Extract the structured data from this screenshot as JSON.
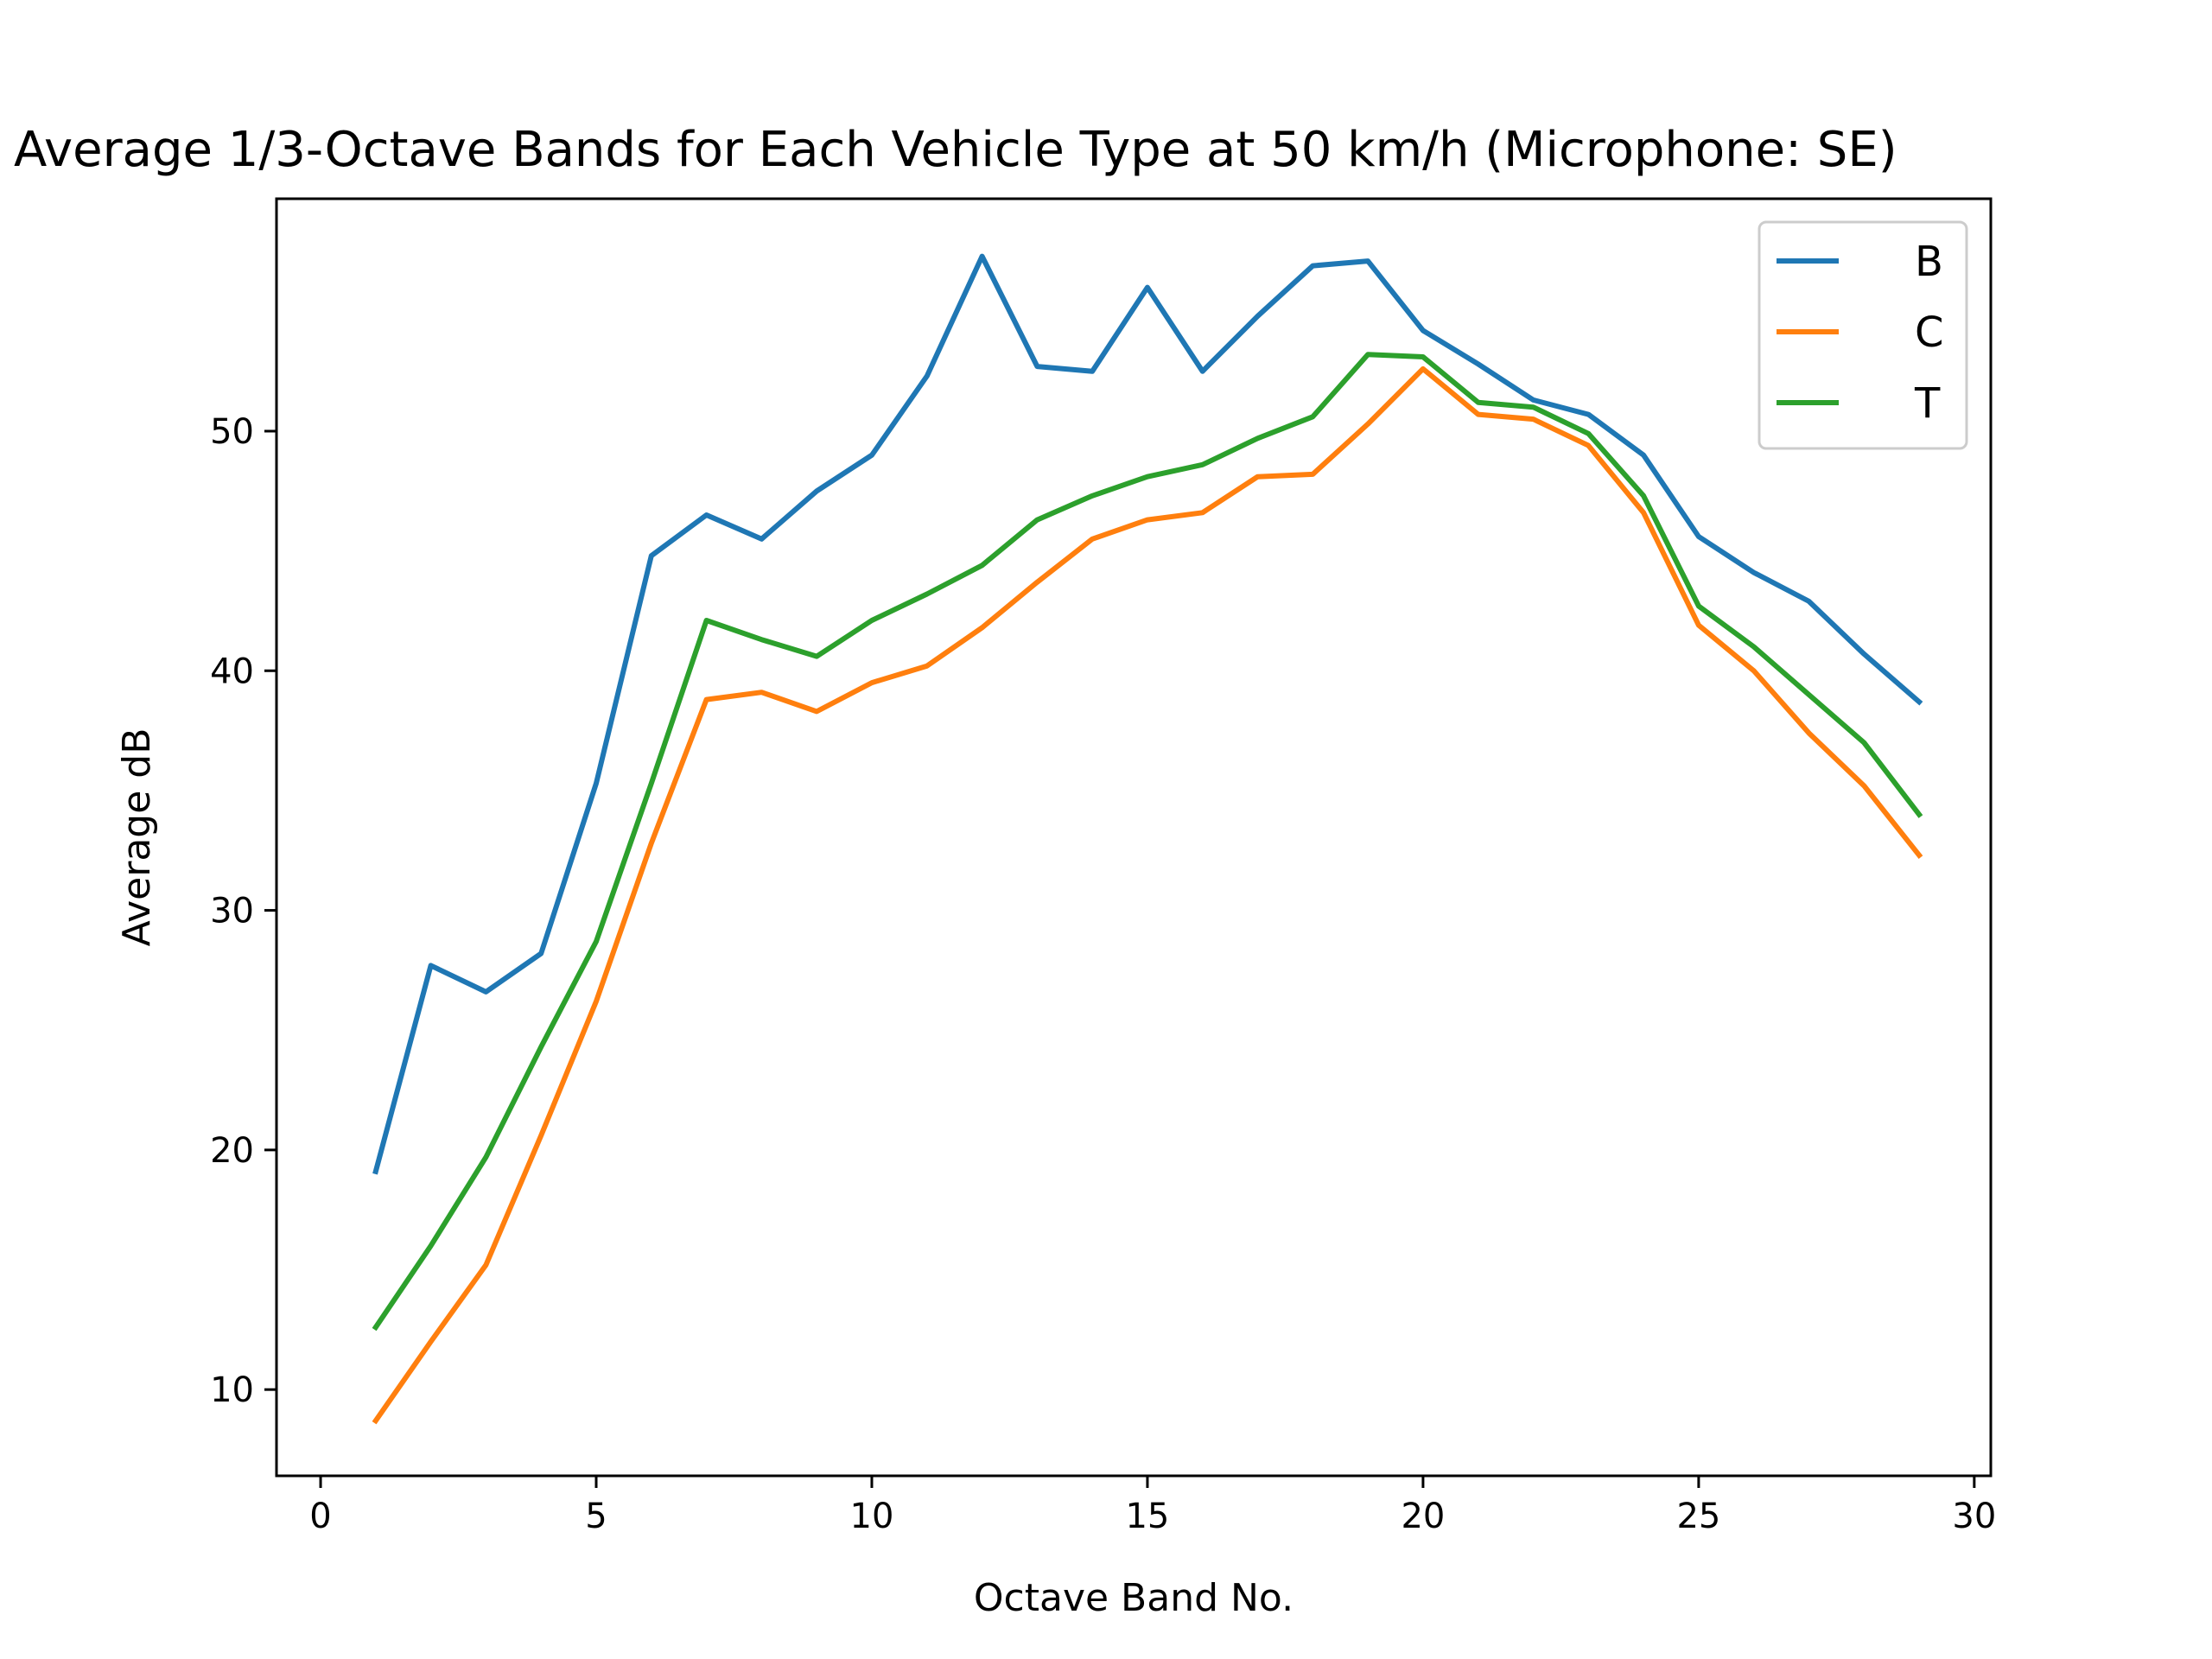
{
  "chart_data": {
    "type": "line",
    "title": "Average 1/3-Octave Bands for Each Vehicle Type at 50 km/h (Microphone: SE)",
    "xlabel": "Octave Band No.",
    "ylabel": "Average dB",
    "xlim": [
      -0.8,
      30.3
    ],
    "ylim": [
      6.4,
      59.7
    ],
    "xticks": [
      0,
      5,
      10,
      15,
      20,
      25,
      30
    ],
    "yticks": [
      10,
      20,
      30,
      40,
      50
    ],
    "grid": false,
    "legend_position": "top-right",
    "x": [
      1,
      2,
      3,
      4,
      5,
      6,
      7,
      8,
      9,
      10,
      11,
      12,
      13,
      14,
      15,
      16,
      17,
      18,
      19,
      20,
      21,
      22,
      23,
      24,
      25,
      26,
      27,
      28,
      29
    ],
    "series": [
      {
        "name": "B",
        "color": "#1f77b4",
        "values": [
          19.1,
          27.7,
          26.6,
          28.2,
          35.3,
          44.8,
          46.5,
          45.5,
          47.5,
          49.0,
          52.3,
          57.3,
          52.7,
          52.5,
          56.0,
          52.5,
          54.8,
          56.9,
          57.1,
          54.2,
          52.8,
          51.3,
          50.7,
          49.0,
          45.6,
          44.1,
          42.9,
          40.7,
          38.7
        ]
      },
      {
        "name": "C",
        "color": "#ff7f0e",
        "values": [
          8.7,
          12.0,
          15.2,
          20.6,
          26.2,
          32.8,
          38.8,
          39.1,
          38.3,
          39.5,
          40.2,
          41.8,
          43.7,
          45.5,
          46.3,
          46.6,
          48.1,
          48.2,
          50.3,
          52.6,
          50.7,
          50.5,
          49.4,
          46.6,
          41.9,
          40.0,
          37.4,
          35.2,
          32.3
        ]
      },
      {
        "name": "T",
        "color": "#2ca02c",
        "values": [
          12.6,
          16.0,
          19.7,
          24.3,
          28.7,
          35.3,
          42.1,
          41.3,
          40.6,
          42.1,
          43.2,
          44.4,
          46.3,
          47.3,
          48.1,
          48.6,
          49.7,
          50.6,
          53.2,
          53.1,
          51.2,
          51.0,
          49.9,
          47.3,
          42.7,
          41.0,
          39.0,
          37.0,
          34.0
        ]
      }
    ]
  }
}
